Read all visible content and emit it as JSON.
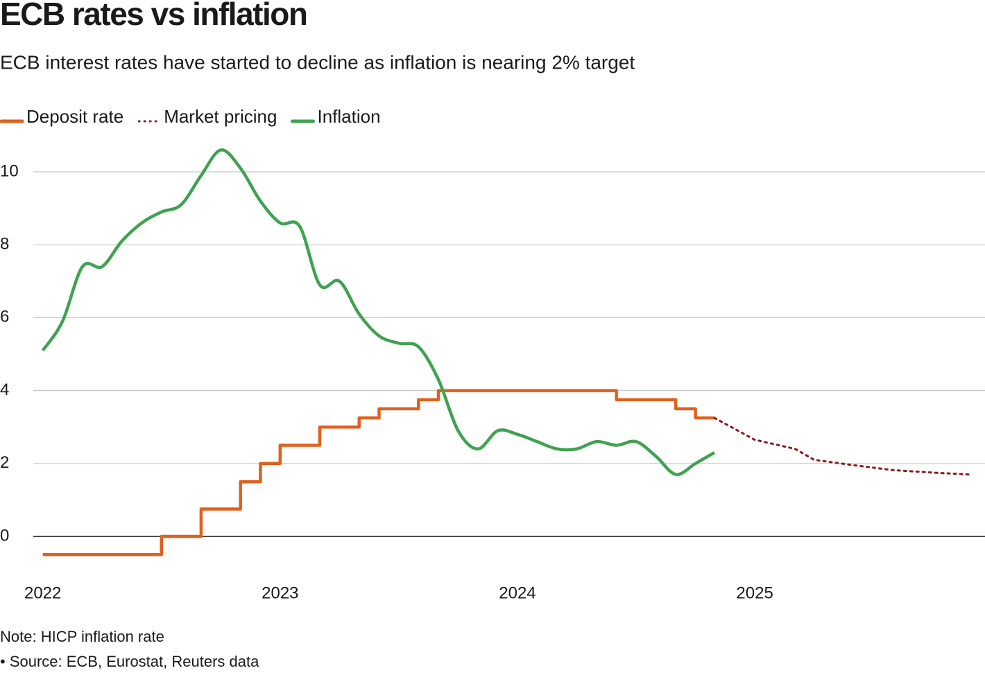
{
  "chart_data": {
    "type": "line",
    "title": "ECB rates vs inflation",
    "subtitle": "ECB interest rates have started to decline as inflation is nearing 2% target",
    "note": "Note: HICP inflation rate",
    "source": "• Source: ECB, Eurostat, Reuters data",
    "xlim": [
      2021.96,
      2025.97
    ],
    "xticks": [
      2022,
      2023,
      2024,
      2025
    ],
    "ylim": [
      -1,
      11
    ],
    "yticks": [
      0,
      2,
      4,
      6,
      8,
      10
    ],
    "grid": true,
    "legend": "top-left",
    "series": [
      {
        "name": "Deposit rate",
        "color": "#e0601d",
        "style": "step",
        "x": [
          2022,
          2022.5,
          2022.667,
          2022.833,
          2022.917,
          2023,
          2023.167,
          2023.333,
          2023.417,
          2023.583,
          2023.667,
          2024.417,
          2024.667,
          2024.75,
          2024.83
        ],
        "values": [
          -0.5,
          0,
          0.75,
          1.5,
          2,
          2.5,
          3,
          3.25,
          3.5,
          3.75,
          4,
          3.75,
          3.5,
          3.25,
          3.25
        ]
      },
      {
        "name": "Market pricing",
        "color": "#8b1a1a",
        "style": "dotted",
        "x": [
          2024.83,
          2025.0,
          2025.17,
          2025.25,
          2025.42,
          2025.58,
          2025.75,
          2025.9
        ],
        "values": [
          3.25,
          2.65,
          2.4,
          2.1,
          1.95,
          1.82,
          1.75,
          1.7
        ]
      },
      {
        "name": "Inflation",
        "color": "#3fa250",
        "style": "smooth",
        "x": [
          2022,
          2022.083,
          2022.167,
          2022.25,
          2022.333,
          2022.417,
          2022.5,
          2022.583,
          2022.667,
          2022.75,
          2022.833,
          2022.917,
          2023,
          2023.083,
          2023.167,
          2023.25,
          2023.333,
          2023.417,
          2023.5,
          2023.583,
          2023.667,
          2023.75,
          2023.833,
          2023.917,
          2024,
          2024.083,
          2024.167,
          2024.25,
          2024.333,
          2024.417,
          2024.5,
          2024.583,
          2024.667,
          2024.75,
          2024.83
        ],
        "values": [
          5.1,
          5.9,
          7.4,
          7.4,
          8.1,
          8.6,
          8.9,
          9.1,
          9.9,
          10.6,
          10.1,
          9.2,
          8.6,
          8.5,
          6.9,
          7.0,
          6.1,
          5.5,
          5.3,
          5.2,
          4.3,
          2.9,
          2.4,
          2.9,
          2.8,
          2.6,
          2.4,
          2.4,
          2.6,
          2.5,
          2.6,
          2.2,
          1.7,
          2.0,
          2.3
        ]
      }
    ]
  }
}
